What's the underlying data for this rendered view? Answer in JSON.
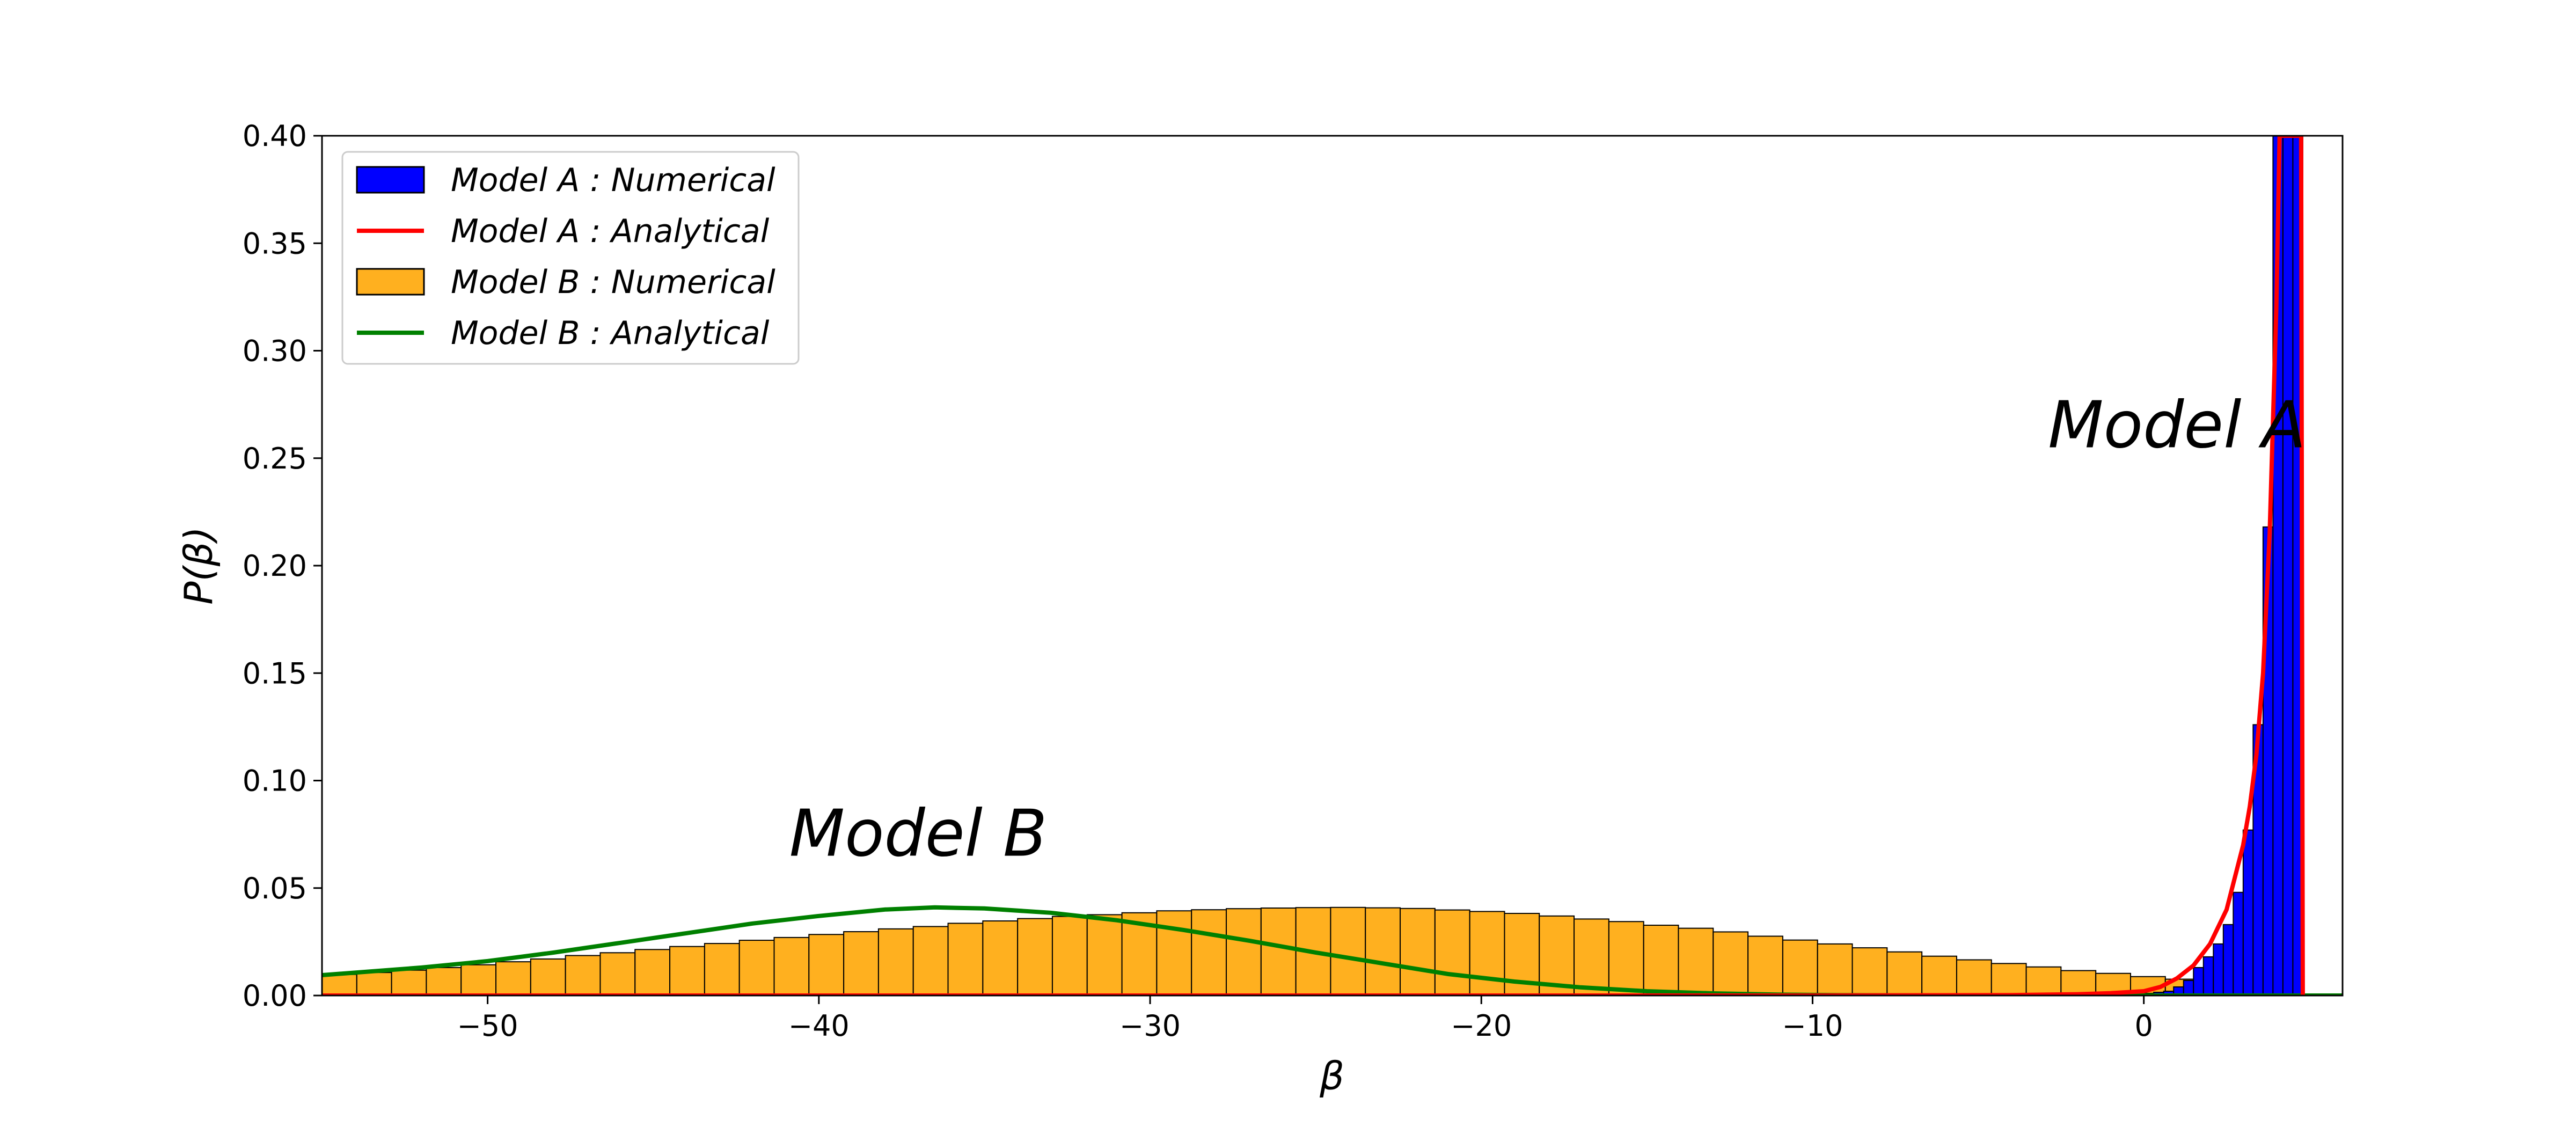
{
  "chart_data": {
    "type": "bar",
    "xlabel": "β",
    "ylabel": "P(β)",
    "xlim": [
      -55,
      6
    ],
    "ylim": [
      0,
      0.4
    ],
    "x_ticks": [
      {
        "value": -50,
        "label": "−50"
      },
      {
        "value": -40,
        "label": "−40"
      },
      {
        "value": -30,
        "label": "−30"
      },
      {
        "value": -20,
        "label": "−20"
      },
      {
        "value": -10,
        "label": "−10"
      },
      {
        "value": 0,
        "label": "0"
      }
    ],
    "y_ticks": [
      {
        "value": 0.0,
        "label": "0.00"
      },
      {
        "value": 0.05,
        "label": "0.05"
      },
      {
        "value": 0.1,
        "label": "0.10"
      },
      {
        "value": 0.15,
        "label": "0.15"
      },
      {
        "value": 0.2,
        "label": "0.20"
      },
      {
        "value": 0.25,
        "label": "0.25"
      },
      {
        "value": 0.3,
        "label": "0.30"
      },
      {
        "value": 0.35,
        "label": "0.35"
      },
      {
        "value": 0.4,
        "label": "0.40"
      }
    ],
    "grid": false,
    "legend_position": "top-left",
    "legend": [
      {
        "label": "Model A : Numerical",
        "kind": "patch",
        "color": "#0000ff"
      },
      {
        "label": "Model A : Analytical",
        "kind": "line",
        "color": "#ff0000"
      },
      {
        "label": "Model B : Numerical",
        "kind": "patch",
        "color": "#ffb01f"
      },
      {
        "label": "Model B : Analytical",
        "kind": "line",
        "color": "#008000"
      }
    ],
    "annotations": [
      {
        "text": "Model A",
        "x": 1.0,
        "y": 0.255
      },
      {
        "text": "Model B",
        "x": -37,
        "y": 0.065
      }
    ],
    "series": [
      {
        "name": "Model A : Numerical",
        "kind": "histogram",
        "color": "#0000ff",
        "bins": [
          {
            "x0": 0.0,
            "x1": 0.3,
            "y": 0.001
          },
          {
            "x0": 0.3,
            "x1": 0.6,
            "y": 0.0015
          },
          {
            "x0": 0.6,
            "x1": 0.9,
            "y": 0.002
          },
          {
            "x0": 0.9,
            "x1": 1.2,
            "y": 0.004
          },
          {
            "x0": 1.2,
            "x1": 1.5,
            "y": 0.007
          },
          {
            "x0": 1.5,
            "x1": 1.8,
            "y": 0.013
          },
          {
            "x0": 1.8,
            "x1": 2.1,
            "y": 0.018
          },
          {
            "x0": 2.1,
            "x1": 2.4,
            "y": 0.024
          },
          {
            "x0": 2.4,
            "x1": 2.7,
            "y": 0.033
          },
          {
            "x0": 2.7,
            "x1": 3.0,
            "y": 0.048
          },
          {
            "x0": 3.0,
            "x1": 3.3,
            "y": 0.077
          },
          {
            "x0": 3.3,
            "x1": 3.6,
            "y": 0.126
          },
          {
            "x0": 3.6,
            "x1": 3.9,
            "y": 0.218
          },
          {
            "x0": 3.9,
            "x1": 4.2,
            "y": 0.4
          },
          {
            "x0": 4.2,
            "x1": 4.5,
            "y": 0.4
          },
          {
            "x0": 4.5,
            "x1": 4.8,
            "y": 0.4
          }
        ]
      },
      {
        "name": "Model A : Analytical",
        "kind": "line",
        "color": "#ff0000",
        "x": [
          -55,
          -10,
          -4,
          -2,
          -1,
          0,
          0.5,
          1.0,
          1.5,
          2.0,
          2.5,
          3.0,
          3.2,
          3.4,
          3.6,
          3.8,
          4.0,
          4.1,
          4.2,
          4.4,
          4.6,
          4.75,
          4.8
        ],
        "y": [
          0,
          0,
          0.0002,
          0.0006,
          0.0011,
          0.002,
          0.004,
          0.008,
          0.014,
          0.024,
          0.04,
          0.07,
          0.088,
          0.112,
          0.15,
          0.215,
          0.32,
          0.4,
          0.4,
          0.4,
          0.4,
          0.4,
          0.0
        ]
      },
      {
        "name": "Model B : Numerical",
        "kind": "histogram",
        "color": "#ffb01f",
        "bin_width": 1.05,
        "bin_start": -55,
        "values": [
          0.0098,
          0.0107,
          0.0118,
          0.013,
          0.0143,
          0.0157,
          0.017,
          0.0186,
          0.0199,
          0.0214,
          0.0228,
          0.0242,
          0.0257,
          0.027,
          0.0284,
          0.0297,
          0.031,
          0.0321,
          0.0336,
          0.0347,
          0.0358,
          0.0368,
          0.0376,
          0.0385,
          0.0394,
          0.0399,
          0.0404,
          0.0407,
          0.0409,
          0.041,
          0.0408,
          0.0405,
          0.0398,
          0.0391,
          0.0382,
          0.037,
          0.0356,
          0.0344,
          0.0327,
          0.0313,
          0.0296,
          0.0276,
          0.0258,
          0.024,
          0.0222,
          0.0203,
          0.0183,
          0.0166,
          0.0149,
          0.0133,
          0.0116,
          0.0103,
          0.0088,
          0.0076,
          0.0065,
          0.0055
        ]
      },
      {
        "name": "Model B : Analytical",
        "kind": "line",
        "color": "#008000",
        "x": [
          -55,
          -52,
          -50,
          -48,
          -46,
          -44,
          -42,
          -40,
          -38,
          -36.5,
          -35,
          -33,
          -31,
          -29,
          -27,
          -25,
          -23,
          -21,
          -19,
          -17,
          -15,
          -13,
          -11,
          -9,
          -7,
          -5,
          -3,
          0,
          3,
          6
        ],
        "y": [
          0.0095,
          0.013,
          0.016,
          0.02,
          0.0245,
          0.029,
          0.0335,
          0.037,
          0.04,
          0.041,
          0.0405,
          0.0385,
          0.035,
          0.0305,
          0.0255,
          0.02,
          0.015,
          0.01,
          0.0065,
          0.0038,
          0.002,
          0.001,
          0.0004,
          0.00015,
          5e-05,
          2e-05,
          0.0,
          0.0,
          0.0,
          0.0
        ]
      }
    ]
  }
}
